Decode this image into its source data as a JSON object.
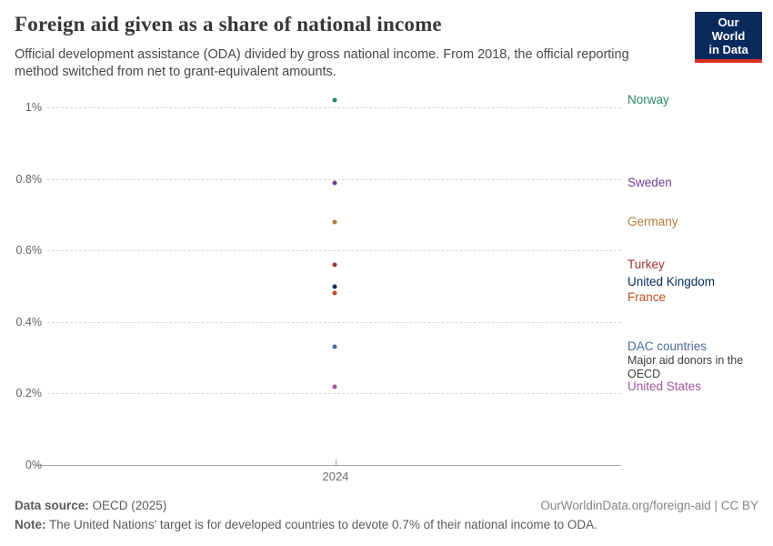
{
  "header": {
    "title": "Foreign aid given as a share of national income",
    "subtitle": "Official development assistance (ODA) divided by gross national income. From 2018, the official reporting method switched from net to grant-equivalent amounts.",
    "logo": {
      "line1": "Our World",
      "line2": "in Data",
      "bg_color": "#0a2a5e",
      "accent_color": "#dc2f22"
    }
  },
  "chart_data": {
    "type": "scatter",
    "x": [
      2024
    ],
    "x_tick_label": "2024",
    "ylim": [
      0,
      1.05
    ],
    "grid": true,
    "legend_position": "right-labels",
    "yticks": [
      {
        "value": 1.0,
        "label": "1%"
      },
      {
        "value": 0.8,
        "label": "0.8%"
      },
      {
        "value": 0.6,
        "label": "0.6%"
      },
      {
        "value": 0.4,
        "label": "0.4%"
      },
      {
        "value": 0.2,
        "label": "0.2%"
      },
      {
        "value": 0.0,
        "label": "0%"
      }
    ],
    "series": [
      {
        "name": "Norway",
        "value": 1.02,
        "color": "#2C8465"
      },
      {
        "name": "Sweden",
        "value": 0.79,
        "color": "#6D3E91"
      },
      {
        "name": "Germany",
        "value": 0.68,
        "color": "#B0793E"
      },
      {
        "name": "Turkey",
        "value": 0.56,
        "color": "#9E3634"
      },
      {
        "name": "United Kingdom",
        "value": 0.5,
        "color": "#00295B"
      },
      {
        "name": "France",
        "value": 0.48,
        "color": "#BE4E1E"
      },
      {
        "name": "DAC countries",
        "value": 0.33,
        "color": "#4C6A9C",
        "sublabel": "Major aid donors in the OECD"
      },
      {
        "name": "United States",
        "value": 0.22,
        "color": "#A2559C"
      }
    ]
  },
  "footer": {
    "sources_label": "Data source:",
    "sources_value": " OECD (2025)",
    "attribution": "OurWorldinData.org/foreign-aid | CC BY",
    "note_label": "Note:",
    "note_text": " The United Nations' target is for developed countries to devote 0.7% of their national income to ODA."
  }
}
